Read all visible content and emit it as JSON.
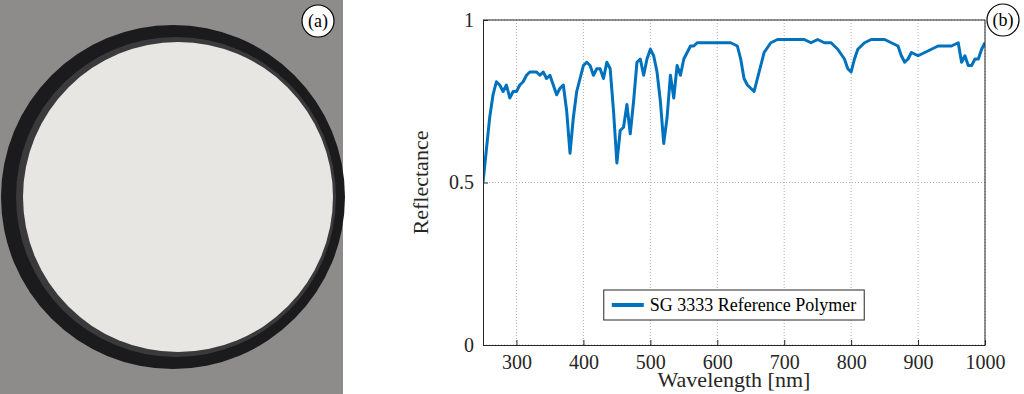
{
  "photo": {
    "label": "(a)"
  },
  "chart_data": {
    "type": "line",
    "panel_label": "(b)",
    "x_label": "Wavelength [nm]",
    "y_label": "Reflectance",
    "x": [
      250,
      255,
      260,
      265,
      270,
      275,
      280,
      285,
      290,
      295,
      300,
      305,
      310,
      315,
      320,
      325,
      330,
      335,
      340,
      345,
      350,
      355,
      360,
      365,
      370,
      375,
      380,
      385,
      390,
      395,
      400,
      405,
      410,
      415,
      420,
      425,
      430,
      435,
      440,
      445,
      450,
      455,
      460,
      465,
      470,
      475,
      480,
      485,
      490,
      495,
      500,
      505,
      510,
      515,
      520,
      525,
      530,
      535,
      540,
      545,
      550,
      555,
      560,
      565,
      570,
      580,
      590,
      600,
      610,
      620,
      630,
      635,
      640,
      645,
      650,
      655,
      660,
      665,
      670,
      680,
      690,
      700,
      710,
      720,
      730,
      740,
      750,
      760,
      770,
      780,
      790,
      795,
      800,
      805,
      810,
      820,
      830,
      840,
      850,
      860,
      870,
      875,
      880,
      885,
      890,
      900,
      910,
      920,
      930,
      940,
      950,
      960,
      965,
      970,
      975,
      980,
      985,
      990,
      995,
      1000
    ],
    "series": [
      {
        "name": "SG 3333 Reference Polymer",
        "color": "#0072bd",
        "values": [
          0.5,
          0.6,
          0.7,
          0.77,
          0.81,
          0.8,
          0.78,
          0.8,
          0.76,
          0.78,
          0.78,
          0.8,
          0.81,
          0.83,
          0.84,
          0.84,
          0.84,
          0.83,
          0.84,
          0.82,
          0.83,
          0.8,
          0.77,
          0.79,
          0.8,
          0.72,
          0.59,
          0.7,
          0.78,
          0.82,
          0.86,
          0.87,
          0.86,
          0.83,
          0.85,
          0.85,
          0.82,
          0.87,
          0.85,
          0.72,
          0.56,
          0.66,
          0.67,
          0.74,
          0.65,
          0.75,
          0.87,
          0.88,
          0.83,
          0.88,
          0.91,
          0.89,
          0.84,
          0.75,
          0.62,
          0.7,
          0.83,
          0.76,
          0.86,
          0.83,
          0.88,
          0.9,
          0.92,
          0.92,
          0.93,
          0.93,
          0.93,
          0.93,
          0.93,
          0.93,
          0.92,
          0.88,
          0.82,
          0.8,
          0.79,
          0.78,
          0.82,
          0.86,
          0.9,
          0.93,
          0.94,
          0.94,
          0.94,
          0.94,
          0.94,
          0.93,
          0.94,
          0.93,
          0.93,
          0.91,
          0.88,
          0.85,
          0.84,
          0.88,
          0.91,
          0.93,
          0.94,
          0.94,
          0.94,
          0.93,
          0.92,
          0.89,
          0.87,
          0.88,
          0.9,
          0.89,
          0.9,
          0.91,
          0.92,
          0.92,
          0.92,
          0.93,
          0.87,
          0.89,
          0.86,
          0.86,
          0.88,
          0.88,
          0.91,
          0.93
        ]
      }
    ],
    "xlim": [
      250,
      1000
    ],
    "xticks": [
      300,
      400,
      500,
      600,
      700,
      800,
      900,
      1000
    ],
    "ylim": [
      0,
      1
    ],
    "yticks": [
      0,
      0.5,
      1
    ],
    "grid": true,
    "legend": "bottom"
  }
}
